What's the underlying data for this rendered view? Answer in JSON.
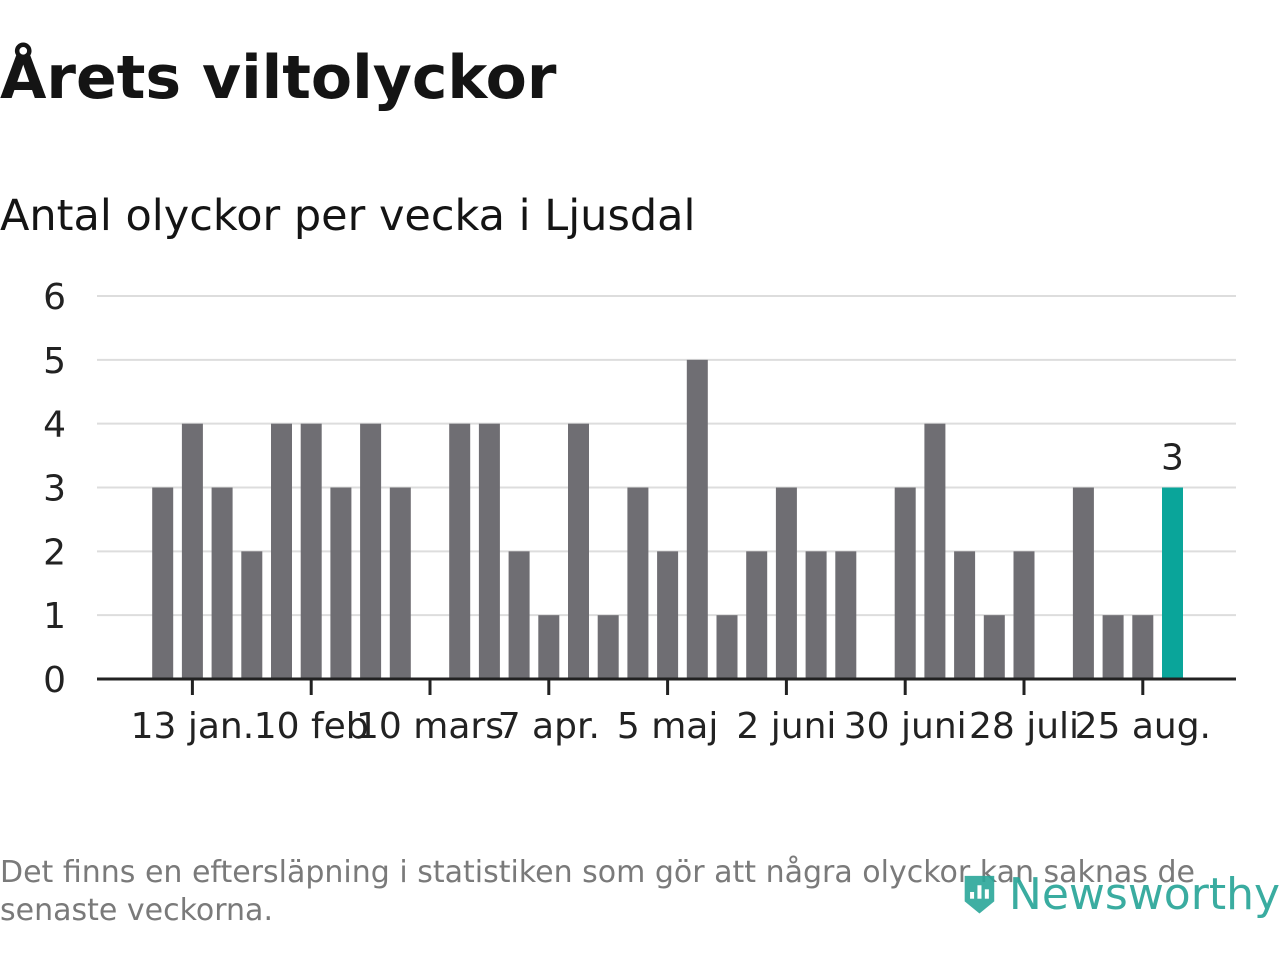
{
  "header": {
    "title": "Årets viltolyckor",
    "subtitle": "Antal olyckor per vecka i Ljusdal"
  },
  "footer": {
    "note": "Det finns en eftersläpning i statistiken som gör att några olyckor kan saknas de senaste veckorna.",
    "brand": "Newsworthy",
    "brand_icon": "newsworthy-logo-icon"
  },
  "colors": {
    "bar": "#6f6e73",
    "highlight": "#0aa59a",
    "grid": "#dddddd",
    "axis": "#222222",
    "text": "#222222",
    "brand": "#2aa699"
  },
  "chart_data": {
    "type": "bar",
    "title": "Antal olyckor per vecka i Ljusdal",
    "xlabel": "",
    "ylabel": "",
    "ylim": [
      0,
      6
    ],
    "yticks": [
      0,
      1,
      2,
      3,
      4,
      5,
      6
    ],
    "grid": true,
    "legend": "none",
    "x_tick_labels": [
      "13 jan.",
      "10 feb",
      "10 mars",
      "7 apr.",
      "5 maj",
      "2 juni",
      "30 juni",
      "28 juli",
      "25 aug."
    ],
    "x_tick_weeks": [
      3,
      7,
      11,
      15,
      19,
      23,
      27,
      31,
      35
    ],
    "weeks": [
      1,
      2,
      3,
      4,
      5,
      6,
      7,
      8,
      9,
      10,
      11,
      12,
      13,
      14,
      15,
      16,
      17,
      18,
      19,
      20,
      21,
      22,
      23,
      24,
      25,
      26,
      27,
      28,
      29,
      30,
      31,
      32,
      33,
      34,
      35,
      36,
      37
    ],
    "values": [
      0,
      3,
      4,
      3,
      2,
      4,
      4,
      3,
      4,
      3,
      0,
      4,
      4,
      2,
      1,
      4,
      1,
      3,
      2,
      5,
      1,
      2,
      3,
      2,
      2,
      0,
      3,
      4,
      2,
      1,
      2,
      0,
      3,
      1,
      1,
      3,
      0
    ],
    "highlight_week": 36,
    "annotations": [
      {
        "week": 36,
        "label": "3"
      }
    ]
  }
}
